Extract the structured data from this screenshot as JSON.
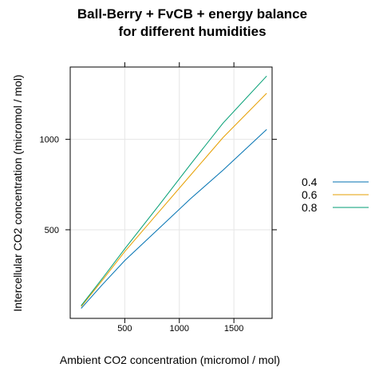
{
  "chart_data": {
    "type": "line",
    "title_lines": [
      "Ball-Berry + FvCB + energy balance",
      "for different humidities"
    ],
    "xlabel": "Ambient CO2 concentration (micromol / mol)",
    "ylabel": "Intercellular CO2 concentration (micromol / mol)",
    "xlim": [
      0,
      1850
    ],
    "ylim": [
      10,
      1400
    ],
    "xticks": [
      500,
      1000,
      1500
    ],
    "yticks": [
      500,
      1000
    ],
    "grid": true,
    "legend_position": "right",
    "series": [
      {
        "name": "0.4",
        "color": "#0072B2",
        "x": [
          100,
          300,
          500,
          800,
          1100,
          1400,
          1800
        ],
        "y": [
          65,
          200,
          330,
          500,
          670,
          830,
          1055
        ]
      },
      {
        "name": "0.6",
        "color": "#E69F00",
        "x": [
          100,
          300,
          500,
          800,
          1100,
          1400,
          1800
        ],
        "y": [
          75,
          225,
          380,
          590,
          800,
          1010,
          1255
        ]
      },
      {
        "name": "0.8",
        "color": "#009E73",
        "x": [
          100,
          300,
          500,
          800,
          1100,
          1400,
          1800
        ],
        "y": [
          80,
          235,
          395,
          625,
          860,
          1090,
          1350
        ]
      }
    ]
  }
}
